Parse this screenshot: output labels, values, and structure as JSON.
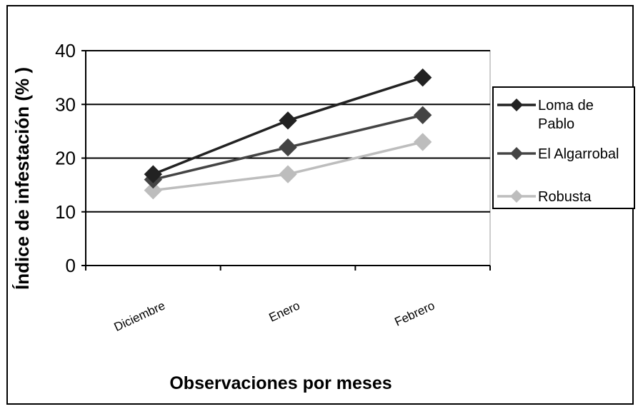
{
  "chart_data": {
    "type": "line",
    "title": "",
    "xlabel": "Observaciones por meses",
    "ylabel": "Índice de infestación (% )",
    "categories": [
      "Diciembre",
      "Enero",
      "Febrero"
    ],
    "ylim": [
      0,
      40
    ],
    "yticks": [
      "0",
      "10",
      "20",
      "30",
      "40"
    ],
    "grid": "horizontal",
    "legend_position": "right",
    "series": [
      {
        "name": "Loma de Pablo",
        "values": [
          17,
          27,
          35
        ],
        "color": "#222222",
        "marker": "diamond"
      },
      {
        "name": "El Algarrobal",
        "values": [
          16,
          22,
          28
        ],
        "color": "#444444",
        "marker": "diamond"
      },
      {
        "name": "Robusta",
        "values": [
          14,
          17,
          23
        ],
        "color": "#bdbdbd",
        "marker": "diamond"
      }
    ]
  }
}
